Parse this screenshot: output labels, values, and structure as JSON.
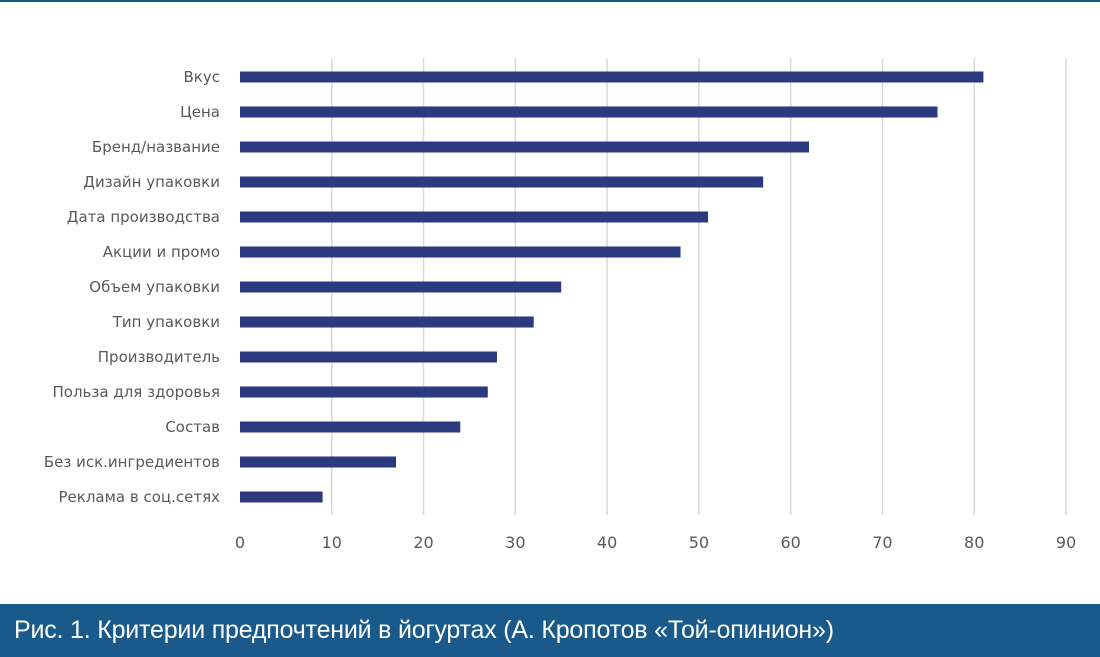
{
  "colors": {
    "bar": "#2b3a7e",
    "grid": "#d9d9d9",
    "label": "#595959",
    "caption_bg": "#1a5a8a",
    "caption_text": "#ffffff",
    "top_rule": "#1a5a8a"
  },
  "caption": {
    "text": "Рис. 1. Критерии предпочтений в йогуртах (А. Кропотов «Той-опинион»)"
  },
  "chart_data": {
    "type": "bar",
    "orientation": "horizontal",
    "categories": [
      "Вкус",
      "Цена",
      "Бренд/название",
      "Дизайн упаковки",
      "Дата производства",
      "Акции и промо",
      "Объем упаковки",
      "Тип упаковки",
      "Производитель",
      "Польза для здоровья",
      "Состав",
      "Без иск.ингредиентов",
      "Реклама в соц.сетях"
    ],
    "values": [
      81,
      76,
      62,
      57,
      51,
      48,
      35,
      32,
      28,
      27,
      24,
      17,
      9
    ],
    "xlim": [
      0,
      90
    ],
    "xticks": [
      0,
      10,
      20,
      30,
      40,
      50,
      60,
      70,
      80,
      90
    ],
    "grid": true,
    "legend": "none"
  }
}
